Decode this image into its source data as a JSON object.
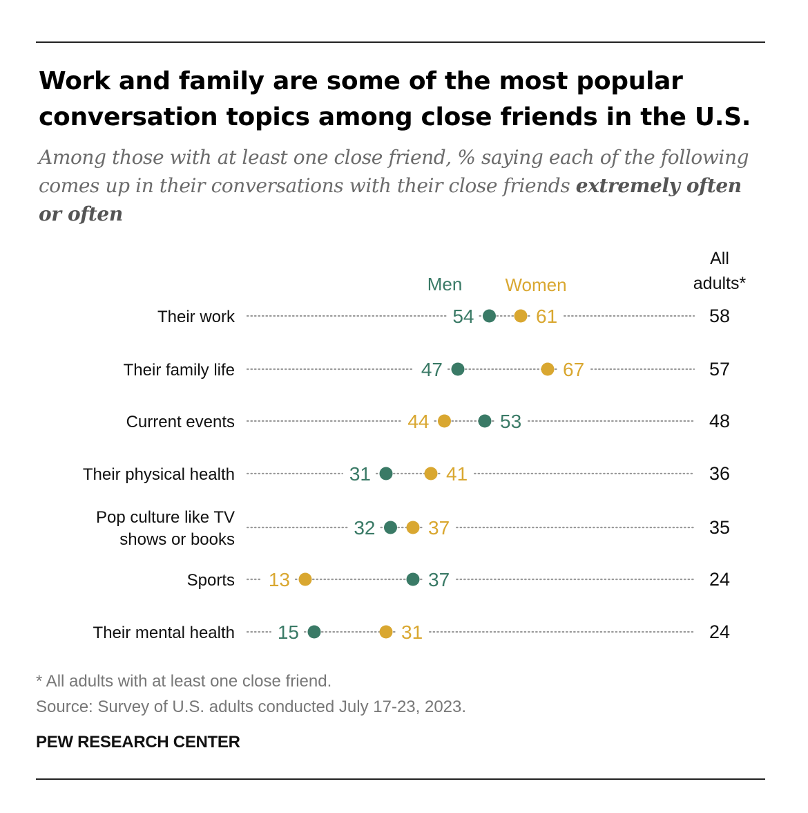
{
  "title": "Work and family are some of the most popular conversation topics among close friends in the U.S.",
  "subtitle_main": "Among those with at least one close friend, % saying each of the following comes up in their conversations with their close friends ",
  "subtitle_bold": "extremely often or often",
  "colors": {
    "men": "#3a7a66",
    "women": "#d9a730",
    "dots_line": "#9a9a9a",
    "text": "#111111"
  },
  "chart_data": {
    "type": "dot",
    "title": "Work and family are some of the most popular conversation topics among close friends in the U.S.",
    "categories": [
      [
        "Their work"
      ],
      [
        "Their family life"
      ],
      [
        "Current events"
      ],
      [
        "Their physical health"
      ],
      [
        "Pop culture like TV",
        "shows or books"
      ],
      [
        "Sports"
      ],
      [
        "Their mental health"
      ]
    ],
    "series": [
      {
        "name": "Men",
        "values": [
          54,
          47,
          53,
          31,
          32,
          37,
          15
        ]
      },
      {
        "name": "Women",
        "values": [
          61,
          67,
          44,
          41,
          37,
          13,
          31
        ]
      }
    ],
    "all_adults_label": [
      "All",
      "adults*"
    ],
    "all_adults": [
      58,
      57,
      48,
      36,
      35,
      24,
      24
    ],
    "xlim": [
      0,
      100
    ]
  },
  "footnote": "* All adults with at least one close friend.",
  "source": "Source: Survey of U.S. adults conducted July 17-23, 2023.",
  "brand": "PEW RESEARCH CENTER"
}
